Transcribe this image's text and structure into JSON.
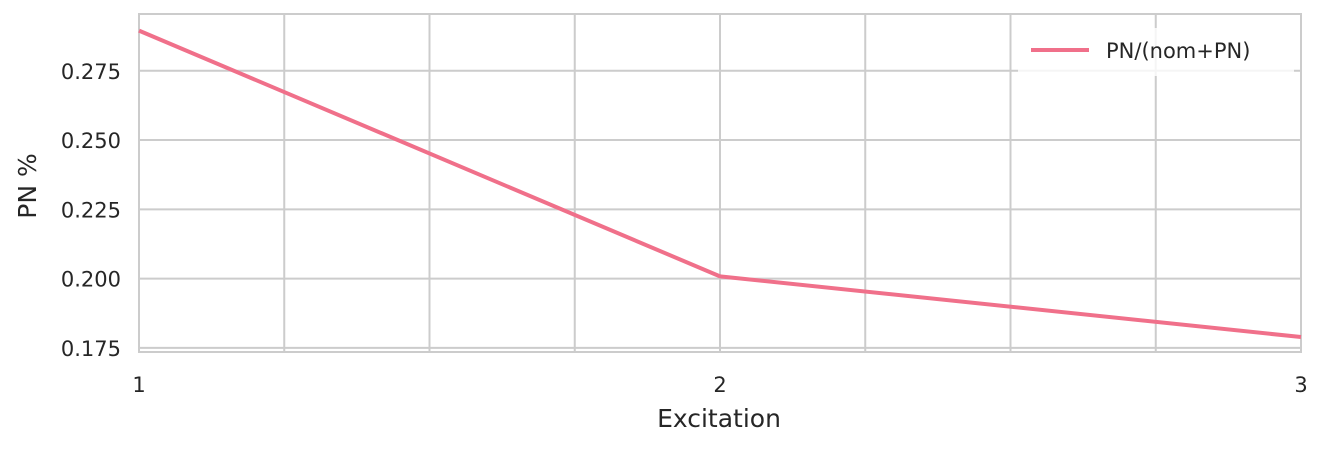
{
  "chart_data": {
    "type": "line",
    "xlabel": "Excitation",
    "ylabel": "PN %",
    "xlim": [
      1,
      3
    ],
    "ylim": [
      0.1735,
      0.2955
    ],
    "x_ticks": [
      1,
      2,
      3
    ],
    "x_tick_labels": [
      "1",
      "2",
      "3"
    ],
    "x_minor_gridlines": [
      1.25,
      1.5,
      1.75,
      2.25,
      2.5,
      2.75
    ],
    "y_ticks": [
      0.175,
      0.2,
      0.225,
      0.25,
      0.275
    ],
    "y_tick_labels": [
      "0.175",
      "0.200",
      "0.225",
      "0.250",
      "0.275"
    ],
    "grid": true,
    "legend_position": "top-right",
    "series": [
      {
        "name": "PN/(nom+PN)",
        "color": "#f0708a",
        "x": [
          1,
          2,
          3
        ],
        "values": [
          0.2895,
          0.2008,
          0.1789
        ]
      }
    ]
  }
}
